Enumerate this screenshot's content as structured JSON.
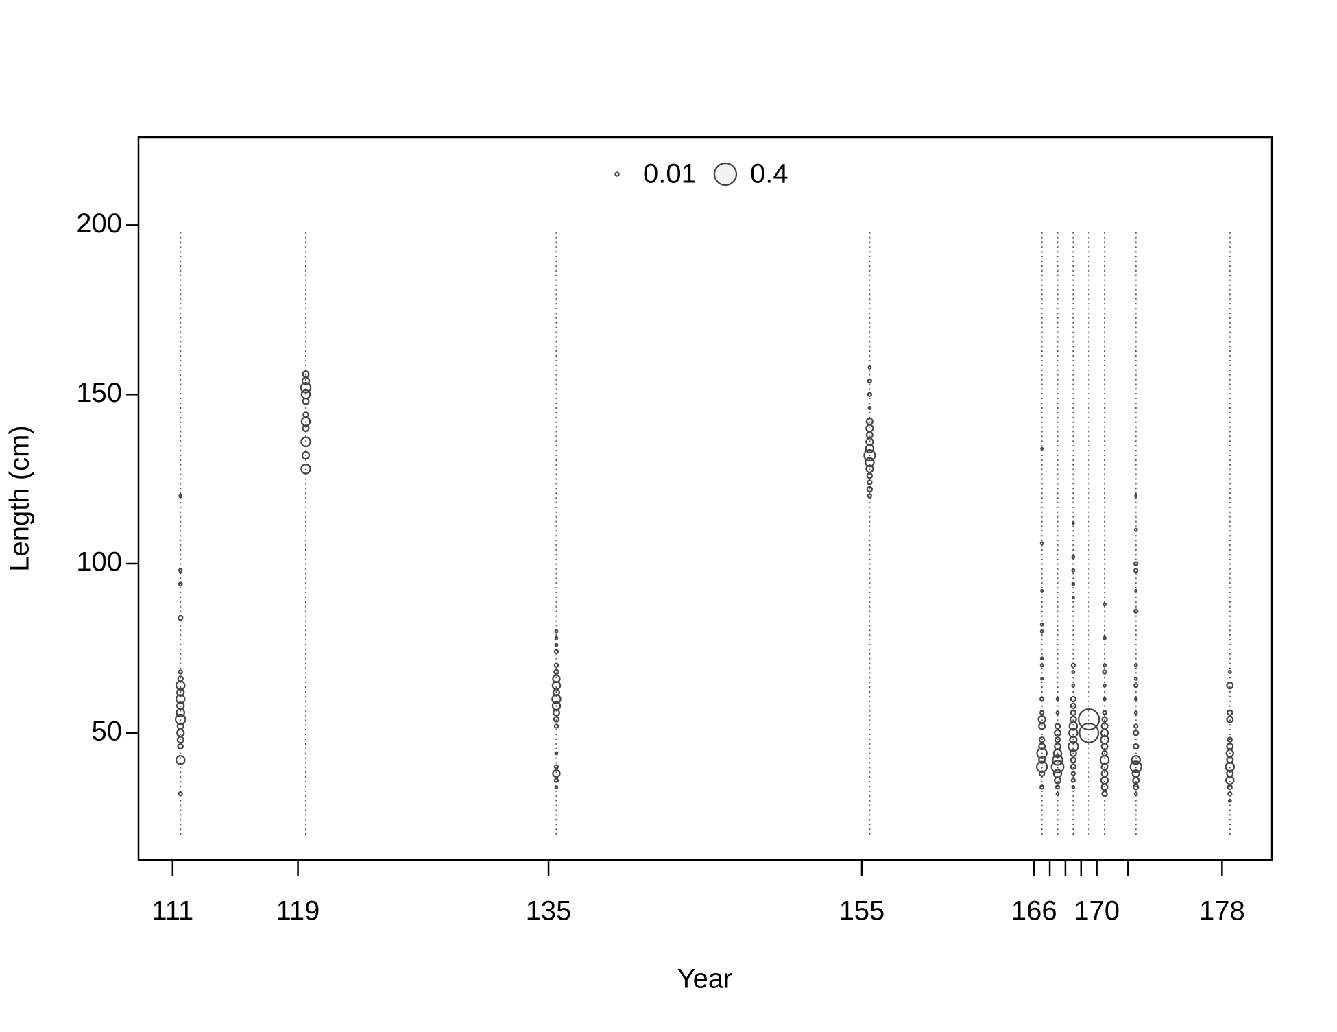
{
  "chart_data": {
    "type": "bubble",
    "xlabel": "Year",
    "ylabel": "Length (cm)",
    "xlim": [
      108.82,
      181.18
    ],
    "ylim": [
      12.5,
      226
    ],
    "xticks": [
      111,
      119,
      135,
      155,
      166,
      167,
      168,
      169,
      170,
      172,
      178
    ],
    "yticks": [
      50,
      100,
      150,
      200
    ],
    "bins_range": [
      20,
      198
    ],
    "color": "#444444",
    "legend": {
      "position": "top",
      "sizes": [
        0.01,
        0.4
      ]
    },
    "series": [
      {
        "x": 111.5,
        "lengths": [
          120,
          98,
          94,
          84,
          68,
          66,
          64,
          62,
          60,
          58,
          56,
          54,
          52,
          50,
          48,
          46,
          42,
          32
        ],
        "values": [
          0.005,
          0.008,
          0.008,
          0.015,
          0.01,
          0.02,
          0.06,
          0.04,
          0.06,
          0.04,
          0.05,
          0.08,
          0.03,
          0.04,
          0.03,
          0.02,
          0.06,
          0.01
        ]
      },
      {
        "x": 119.5,
        "lengths": [
          156,
          154,
          152,
          150,
          148,
          144,
          142,
          140,
          136,
          132,
          128
        ],
        "values": [
          0.03,
          0.04,
          0.08,
          0.06,
          0.03,
          0.02,
          0.06,
          0.03,
          0.07,
          0.04,
          0.07
        ]
      },
      {
        "x": 135.5,
        "lengths": [
          80,
          78,
          76,
          74,
          70,
          68,
          66,
          64,
          62,
          60,
          58,
          56,
          54,
          52,
          44,
          40,
          38,
          36,
          34
        ],
        "values": [
          0.005,
          0.005,
          0.005,
          0.01,
          0.01,
          0.015,
          0.04,
          0.05,
          0.03,
          0.06,
          0.05,
          0.03,
          0.02,
          0.01,
          0.005,
          0.01,
          0.04,
          0.01,
          0.005
        ]
      },
      {
        "x": 155.5,
        "lengths": [
          158,
          154,
          150,
          146,
          142,
          140,
          138,
          136,
          134,
          132,
          130,
          128,
          126,
          124,
          122,
          120
        ],
        "values": [
          0.005,
          0.01,
          0.01,
          0.005,
          0.03,
          0.04,
          0.03,
          0.04,
          0.05,
          0.1,
          0.06,
          0.04,
          0.02,
          0.015,
          0.02,
          0.01
        ]
      },
      {
        "x": 166.5,
        "lengths": [
          134,
          106,
          92,
          82,
          80,
          72,
          70,
          66,
          60,
          56,
          54,
          52,
          48,
          46,
          44,
          42,
          40,
          38,
          34
        ],
        "values": [
          0.003,
          0.005,
          0.003,
          0.005,
          0.005,
          0.005,
          0.005,
          0.003,
          0.01,
          0.01,
          0.04,
          0.03,
          0.02,
          0.03,
          0.08,
          0.03,
          0.09,
          0.02,
          0.01
        ]
      },
      {
        "x": 167.5,
        "lengths": [
          60,
          56,
          52,
          50,
          48,
          46,
          44,
          42,
          40,
          38,
          36,
          34,
          32
        ],
        "values": [
          0.005,
          0.005,
          0.02,
          0.03,
          0.02,
          0.03,
          0.05,
          0.08,
          0.12,
          0.05,
          0.03,
          0.01,
          0.005
        ]
      },
      {
        "x": 168.5,
        "lengths": [
          112,
          102,
          98,
          94,
          90,
          70,
          68,
          64,
          60,
          58,
          56,
          54,
          52,
          50,
          48,
          46,
          44,
          42,
          40,
          38,
          36,
          34
        ],
        "values": [
          0.003,
          0.005,
          0.005,
          0.005,
          0.003,
          0.01,
          0.005,
          0.005,
          0.02,
          0.02,
          0.02,
          0.03,
          0.05,
          0.06,
          0.04,
          0.08,
          0.03,
          0.02,
          0.02,
          0.01,
          0.01,
          0.005
        ]
      },
      {
        "x": 169.5,
        "lengths": [
          54,
          50
        ],
        "values": [
          0.35,
          0.3
        ]
      },
      {
        "x": 170.5,
        "lengths": [
          88,
          78,
          70,
          68,
          64,
          60,
          56,
          54,
          52,
          50,
          48,
          46,
          44,
          42,
          40,
          38,
          36,
          34,
          32
        ],
        "values": [
          0.005,
          0.005,
          0.005,
          0.01,
          0.005,
          0.005,
          0.01,
          0.02,
          0.03,
          0.04,
          0.05,
          0.03,
          0.02,
          0.06,
          0.03,
          0.03,
          0.04,
          0.03,
          0.02
        ]
      },
      {
        "x": 172.5,
        "lengths": [
          120,
          110,
          100,
          98,
          92,
          86,
          70,
          66,
          64,
          60,
          56,
          52,
          50,
          46,
          42,
          40,
          38,
          36,
          34,
          32
        ],
        "values": [
          0.003,
          0.005,
          0.01,
          0.01,
          0.003,
          0.01,
          0.005,
          0.005,
          0.01,
          0.005,
          0.005,
          0.01,
          0.02,
          0.02,
          0.06,
          0.1,
          0.04,
          0.03,
          0.02,
          0.005
        ]
      },
      {
        "x": 178.5,
        "lengths": [
          68,
          64,
          56,
          54,
          48,
          46,
          44,
          42,
          40,
          38,
          36,
          34,
          32,
          30
        ],
        "values": [
          0.005,
          0.03,
          0.02,
          0.03,
          0.015,
          0.03,
          0.04,
          0.03,
          0.06,
          0.03,
          0.05,
          0.015,
          0.01,
          0.005
        ]
      }
    ]
  }
}
